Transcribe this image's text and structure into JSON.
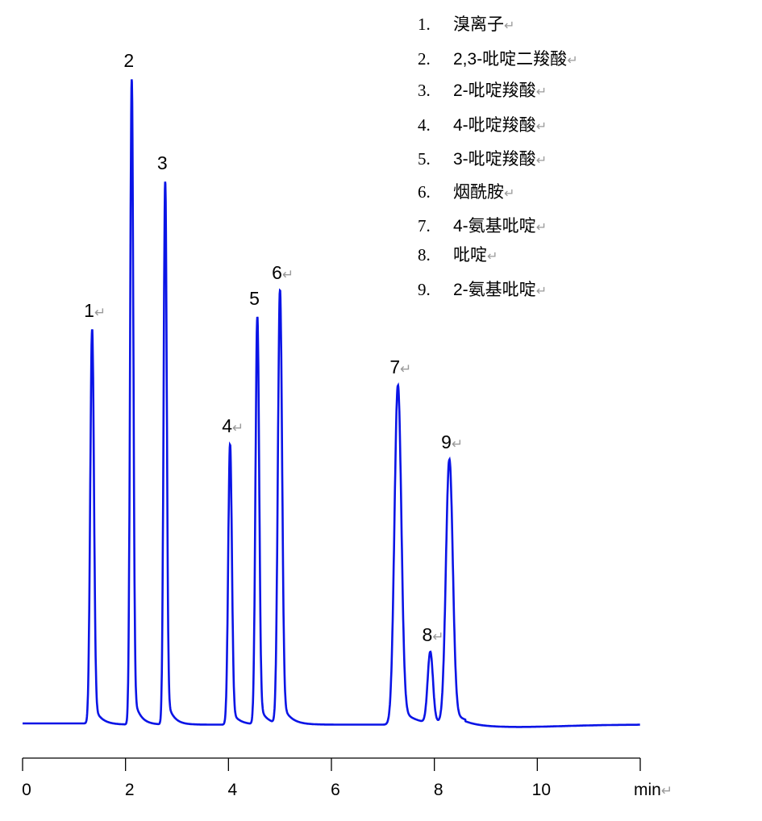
{
  "chart_data": {
    "type": "line",
    "xlabel": "min",
    "xlim": [
      0,
      12
    ],
    "xticks": [
      0,
      2,
      4,
      6,
      8,
      10
    ],
    "grid": false,
    "line_color": "#0a14e6",
    "baseline": 0,
    "peaks": [
      {
        "label": "1",
        "rt": 1.35,
        "height": 490,
        "width": 0.035
      },
      {
        "label": "2",
        "rt": 2.12,
        "height": 800,
        "width": 0.03
      },
      {
        "label": "3",
        "rt": 2.77,
        "height": 673,
        "width": 0.03
      },
      {
        "label": "4",
        "rt": 4.03,
        "height": 347,
        "width": 0.035
      },
      {
        "label": "5",
        "rt": 4.56,
        "height": 505,
        "width": 0.035
      },
      {
        "label": "6",
        "rt": 5.0,
        "height": 537,
        "width": 0.04
      },
      {
        "label": "7",
        "rt": 7.29,
        "height": 420,
        "width": 0.065
      },
      {
        "label": "8",
        "rt": 7.92,
        "height": 88,
        "width": 0.05
      },
      {
        "label": "9",
        "rt": 8.29,
        "height": 327,
        "width": 0.065
      }
    ],
    "legend": [
      {
        "num": "1.",
        "name": "溴离子"
      },
      {
        "num": "2.",
        "name": "2,3-吡啶二羧酸"
      },
      {
        "num": "3.",
        "name": "2-吡啶羧酸"
      },
      {
        "num": "4.",
        "name": "4-吡啶羧酸"
      },
      {
        "num": "5.",
        "name": "3-吡啶羧酸"
      },
      {
        "num": "6.",
        "name": "烟酰胺"
      },
      {
        "num": "7.",
        "name": "4-氨基吡啶"
      },
      {
        "num": "8.",
        "name": "吡啶"
      },
      {
        "num": "9.",
        "name": "2-氨基吡啶"
      }
    ],
    "paragraph_mark": "↵"
  }
}
